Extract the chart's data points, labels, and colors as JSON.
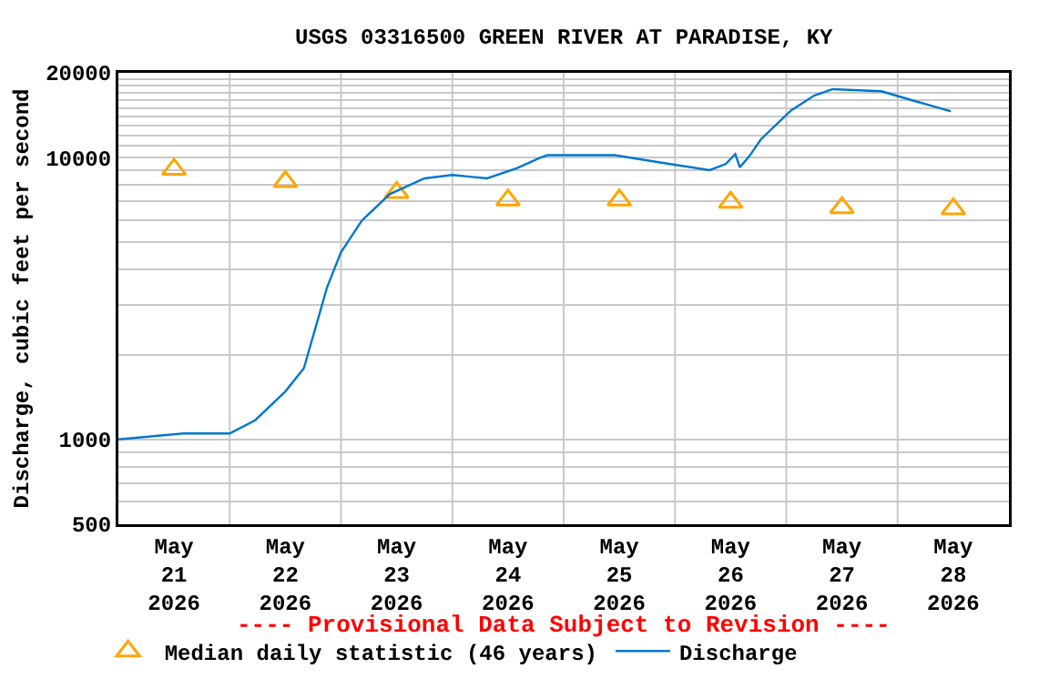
{
  "chart_data": {
    "type": "line",
    "title": "USGS 03316500 GREEN RIVER AT PARADISE, KY",
    "ylabel": "Discharge, cubic feet per second",
    "annotations": [
      "---- Provisional Data Subject to Revision ----"
    ],
    "log": "y",
    "grid": true,
    "legend": "bottom",
    "xlim": [
      "2026-05-21T00:00",
      "2026-05-29T00:00"
    ],
    "xticks": [
      {
        "value": "2026-05-21T12:00",
        "label": "May\n21\n2026"
      },
      {
        "value": "2026-05-22T12:00",
        "label": "May\n22\n2026"
      },
      {
        "value": "2026-05-23T12:00",
        "label": "May\n23\n2026"
      },
      {
        "value": "2026-05-24T12:00",
        "label": "May\n24\n2026"
      },
      {
        "value": "2026-05-25T12:00",
        "label": "May\n25\n2026"
      },
      {
        "value": "2026-05-26T12:00",
        "label": "May\n26\n2026"
      },
      {
        "value": "2026-05-27T12:00",
        "label": "May\n27\n2026"
      },
      {
        "value": "2026-05-28T12:00",
        "label": "May\n28\n2026"
      },
      {
        "value": "2026-05-22T00:00",
        "label": null
      },
      {
        "value": "2026-05-23T00:00",
        "label": null
      },
      {
        "value": "2026-05-24T00:00",
        "label": null
      },
      {
        "value": "2026-05-25T00:00",
        "label": null
      },
      {
        "value": "2026-05-26T00:00",
        "label": null
      },
      {
        "value": "2026-05-27T00:00",
        "label": null
      },
      {
        "value": "2026-05-28T00:00",
        "label": null
      }
    ],
    "ylim": [
      500,
      20000
    ],
    "yticks": [
      500,
      {
        "value": 600,
        "label": null
      },
      {
        "value": 700,
        "label": null
      },
      {
        "value": 800,
        "label": null
      },
      {
        "value": 900,
        "label": null
      },
      1000,
      {
        "value": 2000,
        "label": null
      },
      {
        "value": 3000,
        "label": null
      },
      {
        "value": 4000,
        "label": null
      },
      {
        "value": 5000,
        "label": null
      },
      {
        "value": 6000,
        "label": null
      },
      {
        "value": 7000,
        "label": null
      },
      {
        "value": 8000,
        "label": null
      },
      {
        "value": 9000,
        "label": null
      },
      10000,
      {
        "value": 11000,
        "label": null
      },
      {
        "value": 12000,
        "label": null
      },
      {
        "value": 13000,
        "label": null
      },
      {
        "value": 14000,
        "label": null
      },
      {
        "value": 15000,
        "label": null
      },
      {
        "value": 16000,
        "label": null
      },
      {
        "value": 17000,
        "label": null
      },
      {
        "value": 18000,
        "label": null
      },
      {
        "value": 19000,
        "label": null
      },
      20000
    ],
    "series": [
      {
        "name": "Median daily statistic (46 years)",
        "type": "scatter",
        "marker": "triangle",
        "color": "#ffa500",
        "x": [
          "2026-05-21T12:00",
          "2026-05-22T12:00",
          "2026-05-23T12:00",
          "2026-05-24T12:00",
          "2026-05-25T12:00",
          "2026-05-26T12:00",
          "2026-05-27T12:00",
          "2026-05-28T12:00"
        ],
        "values": [
          9100,
          8220,
          7520,
          7070,
          7070,
          6940,
          6640,
          6580
        ]
      },
      {
        "name": "Discharge",
        "color": "#0077cc",
        "x": [
          "2026-05-21T00:00",
          "2026-05-21T14:00",
          "2026-05-22T00:00",
          "2026-05-22T05:30",
          "2026-05-22T12:00",
          "2026-05-22T16:00",
          "2026-05-22T18:30",
          "2026-05-22T21:00",
          "2026-05-23T00:00",
          "2026-05-23T04:30",
          "2026-05-23T10:30",
          "2026-05-23T18:00",
          "2026-05-24T00:00",
          "2026-05-24T07:30",
          "2026-05-24T14:00",
          "2026-05-24T19:00",
          "2026-05-24T20:30",
          "2026-05-25T11:00",
          "2026-05-26T00:30",
          "2026-05-26T07:30",
          "2026-05-26T11:00",
          "2026-05-26T13:00",
          "2026-05-26T14:00",
          "2026-05-26T16:00",
          "2026-05-26T18:30",
          "2026-05-27T01:00",
          "2026-05-27T06:00",
          "2026-05-27T10:00",
          "2026-05-27T20:30",
          "2026-05-28T03:00",
          "2026-05-28T11:30"
        ],
        "values": [
          1000,
          1050,
          1050,
          1170,
          1480,
          1790,
          2490,
          3470,
          4620,
          5980,
          7420,
          8440,
          8680,
          8440,
          9180,
          10000,
          10200,
          10200,
          9400,
          9030,
          9500,
          10300,
          9240,
          10100,
          11600,
          14700,
          16600,
          17500,
          17200,
          16000,
          14600
        ]
      }
    ]
  }
}
